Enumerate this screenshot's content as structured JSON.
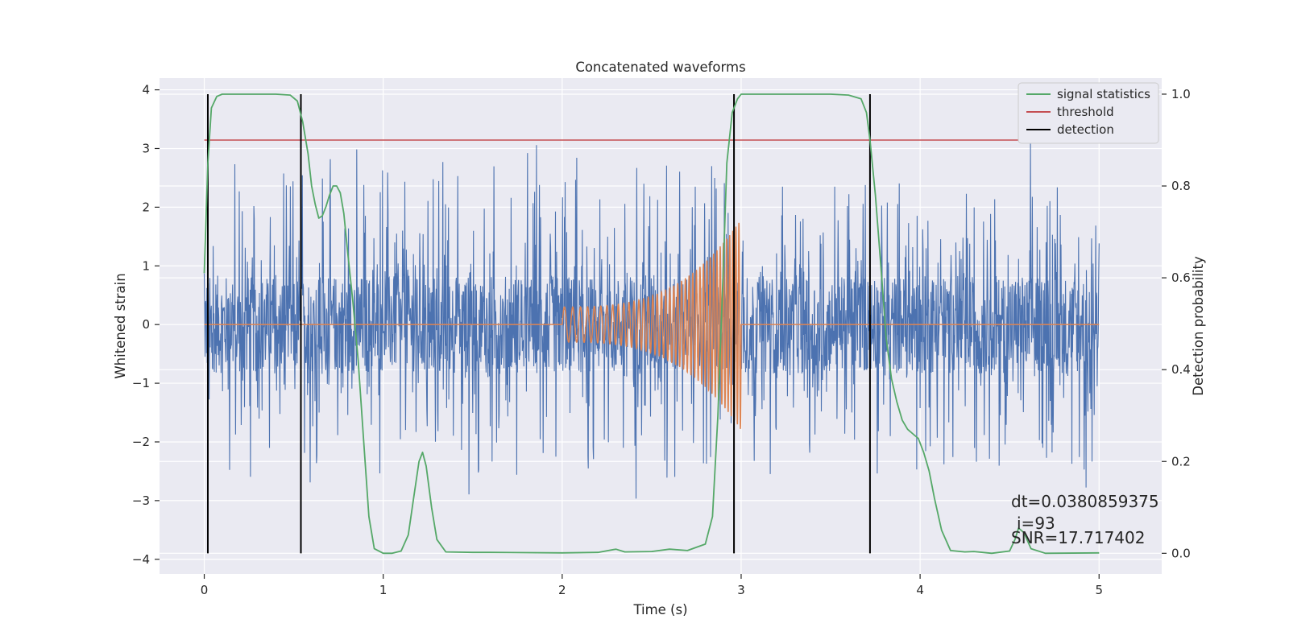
{
  "chart_data": {
    "type": "line",
    "title": "Concatenated waveforms",
    "xlabel": "Time (s)",
    "ylabel": "Whitened strain",
    "y2label": "Detection probability",
    "xlim": [
      -0.25,
      5.35
    ],
    "ylim": [
      -4.25,
      4.2
    ],
    "y2lim": [
      -0.045,
      1.035
    ],
    "x_ticks": [
      "0",
      "1",
      "2",
      "3",
      "4",
      "5"
    ],
    "y_ticks": [
      "4",
      "3",
      "2",
      "1",
      "0",
      "−1",
      "−2",
      "−3",
      "−4"
    ],
    "y2_ticks": [
      "1.0",
      "0.8",
      "0.6",
      "0.4",
      "0.2",
      "0.0"
    ],
    "grid": true,
    "legend_position": "top-right",
    "legend": [
      {
        "label": "signal statistics",
        "color": "#55a868"
      },
      {
        "label": "threshold",
        "color": "#c44e52"
      },
      {
        "label": "detection",
        "color": "#000000"
      }
    ],
    "noise": {
      "name": "whitened strain",
      "color": "#4c72b0",
      "x_range": [
        0,
        5
      ],
      "core_amplitude": 0.8,
      "peak_amplitude": 3.3
    },
    "injection": {
      "name": "injected waveform",
      "color": "#dd8452",
      "x_range": [
        0,
        5
      ],
      "chirp_start": 2.0,
      "chirp_end": 3.0,
      "start_amplitude": 0.3,
      "end_amplitude": 1.8
    },
    "signal_statistics": {
      "color": "#55a868",
      "axis": "right",
      "points": [
        [
          0.0,
          0.61
        ],
        [
          0.02,
          0.85
        ],
        [
          0.04,
          0.97
        ],
        [
          0.07,
          0.995
        ],
        [
          0.1,
          1.0
        ],
        [
          0.2,
          1.0
        ],
        [
          0.3,
          1.0
        ],
        [
          0.4,
          1.0
        ],
        [
          0.48,
          0.998
        ],
        [
          0.52,
          0.985
        ],
        [
          0.55,
          0.94
        ],
        [
          0.58,
          0.87
        ],
        [
          0.6,
          0.8
        ],
        [
          0.62,
          0.76
        ],
        [
          0.64,
          0.73
        ],
        [
          0.66,
          0.735
        ],
        [
          0.68,
          0.755
        ],
        [
          0.7,
          0.78
        ],
        [
          0.72,
          0.8
        ],
        [
          0.74,
          0.8
        ],
        [
          0.76,
          0.785
        ],
        [
          0.78,
          0.74
        ],
        [
          0.8,
          0.66
        ],
        [
          0.83,
          0.55
        ],
        [
          0.86,
          0.42
        ],
        [
          0.89,
          0.25
        ],
        [
          0.92,
          0.08
        ],
        [
          0.95,
          0.01
        ],
        [
          1.0,
          0.0
        ],
        [
          1.05,
          0.0
        ],
        [
          1.1,
          0.005
        ],
        [
          1.14,
          0.04
        ],
        [
          1.17,
          0.12
        ],
        [
          1.2,
          0.2
        ],
        [
          1.22,
          0.22
        ],
        [
          1.24,
          0.19
        ],
        [
          1.27,
          0.1
        ],
        [
          1.3,
          0.03
        ],
        [
          1.35,
          0.003
        ],
        [
          1.5,
          0.002
        ],
        [
          1.6,
          0.002
        ],
        [
          2.0,
          0.001
        ],
        [
          2.2,
          0.002
        ],
        [
          2.3,
          0.009
        ],
        [
          2.35,
          0.003
        ],
        [
          2.5,
          0.004
        ],
        [
          2.6,
          0.009
        ],
        [
          2.7,
          0.006
        ],
        [
          2.8,
          0.02
        ],
        [
          2.84,
          0.08
        ],
        [
          2.87,
          0.3
        ],
        [
          2.9,
          0.62
        ],
        [
          2.92,
          0.85
        ],
        [
          2.95,
          0.96
        ],
        [
          2.98,
          0.99
        ],
        [
          3.0,
          1.0
        ],
        [
          3.1,
          1.0
        ],
        [
          3.3,
          1.0
        ],
        [
          3.5,
          1.0
        ],
        [
          3.6,
          0.998
        ],
        [
          3.67,
          0.99
        ],
        [
          3.7,
          0.96
        ],
        [
          3.72,
          0.9
        ],
        [
          3.75,
          0.78
        ],
        [
          3.78,
          0.63
        ],
        [
          3.81,
          0.47
        ],
        [
          3.84,
          0.38
        ],
        [
          3.87,
          0.33
        ],
        [
          3.9,
          0.29
        ],
        [
          3.93,
          0.27
        ],
        [
          3.96,
          0.26
        ],
        [
          3.99,
          0.25
        ],
        [
          4.02,
          0.22
        ],
        [
          4.05,
          0.18
        ],
        [
          4.08,
          0.12
        ],
        [
          4.12,
          0.05
        ],
        [
          4.17,
          0.006
        ],
        [
          4.25,
          0.003
        ],
        [
          4.3,
          0.004
        ],
        [
          4.4,
          0.0
        ],
        [
          4.5,
          0.005
        ],
        [
          4.53,
          0.03
        ],
        [
          4.55,
          0.055
        ],
        [
          4.58,
          0.045
        ],
        [
          4.62,
          0.01
        ],
        [
          4.7,
          0.0
        ],
        [
          5.0,
          0.001
        ]
      ]
    },
    "threshold": {
      "color": "#c44e52",
      "axis": "right",
      "value": 0.9,
      "x_range": [
        0,
        5.1
      ]
    },
    "detections": {
      "color": "#000000",
      "axis": "right",
      "x": [
        0.02,
        0.54,
        2.96,
        3.72
      ],
      "y_range": [
        0.0,
        1.0
      ]
    },
    "annotation": {
      "lines": [
        "dt=0.0380859375",
        "i=93",
        "SNR=17.717402"
      ]
    }
  }
}
